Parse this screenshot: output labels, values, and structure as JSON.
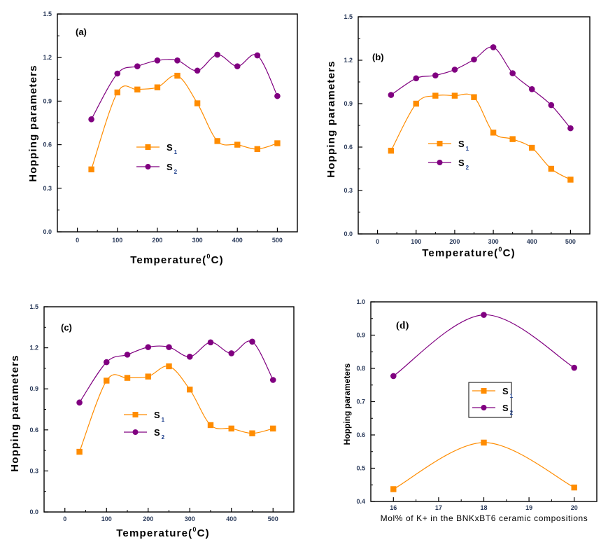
{
  "colors": {
    "s1": "#FF8C00",
    "s2": "#800080",
    "axis": "#000000"
  },
  "chart_data": [
    {
      "panel": "(a)",
      "type": "line",
      "title": "",
      "xlabel": "Temperature(°C)",
      "xlabel_main": "Temperature(",
      "xlabel_sup": "0",
      "xlabel_tail": "C)",
      "ylabel": "Hopping parameters",
      "xlim": [
        -50,
        550
      ],
      "ylim": [
        0.0,
        1.5
      ],
      "xticks": [
        0,
        100,
        200,
        300,
        400,
        500
      ],
      "xtick_labels": [
        "0",
        "100",
        "200",
        "300",
        "400",
        "500"
      ],
      "yticks": [
        0.0,
        0.3,
        0.6,
        0.9,
        1.2,
        1.5
      ],
      "ytick_labels": [
        "0.0",
        "0.3",
        "0.6",
        "0.9",
        "1.2",
        "1.5"
      ],
      "legend": "center-left",
      "grid": false,
      "x": [
        35,
        100,
        150,
        200,
        250,
        300,
        350,
        400,
        450,
        500
      ],
      "series": [
        {
          "name": "S1",
          "label": "S",
          "sub": "1",
          "marker": "square",
          "values": [
            0.43,
            0.96,
            0.98,
            0.995,
            1.075,
            0.885,
            0.625,
            0.6,
            0.57,
            0.61
          ]
        },
        {
          "name": "S2",
          "label": "S",
          "sub": "2",
          "marker": "circle",
          "values": [
            0.775,
            1.09,
            1.14,
            1.18,
            1.18,
            1.11,
            1.22,
            1.14,
            1.215,
            0.935
          ]
        }
      ]
    },
    {
      "panel": "(b)",
      "type": "line",
      "title": "",
      "xlabel": "Temperature(°C)",
      "xlabel_main": "Temperature(",
      "xlabel_sup": "0",
      "xlabel_tail": "C)",
      "ylabel": "Hopping parameters",
      "xlim": [
        -50,
        550
      ],
      "ylim": [
        0.0,
        1.5
      ],
      "xticks": [
        0,
        100,
        200,
        300,
        400,
        500
      ],
      "xtick_labels": [
        "0",
        "100",
        "200",
        "300",
        "400",
        "500"
      ],
      "yticks": [
        0.0,
        0.3,
        0.6,
        0.9,
        1.2,
        1.5
      ],
      "ytick_labels": [
        "0.0",
        "0.3",
        "0.6",
        "0.9",
        "1.2",
        "1.5"
      ],
      "legend": "center-left",
      "grid": false,
      "x": [
        35,
        100,
        150,
        200,
        250,
        300,
        350,
        400,
        450,
        500
      ],
      "series": [
        {
          "name": "S1",
          "label": "S",
          "sub": "1",
          "marker": "square",
          "values": [
            0.575,
            0.9,
            0.955,
            0.955,
            0.945,
            0.7,
            0.655,
            0.595,
            0.45,
            0.375
          ]
        },
        {
          "name": "S2",
          "label": "S",
          "sub": "2",
          "marker": "circle",
          "values": [
            0.96,
            1.075,
            1.095,
            1.135,
            1.205,
            1.29,
            1.11,
            1.0,
            0.89,
            0.73
          ]
        }
      ]
    },
    {
      "panel": "(c)",
      "type": "line",
      "title": "",
      "xlabel": "Temperature(°C)",
      "xlabel_main": "Temperature(",
      "xlabel_sup": "0",
      "xlabel_tail": "C)",
      "ylabel": "Hopping parameters",
      "xlim": [
        -50,
        550
      ],
      "ylim": [
        0.0,
        1.5
      ],
      "xticks": [
        0,
        100,
        200,
        300,
        400,
        500
      ],
      "xtick_labels": [
        "0",
        "100",
        "200",
        "300",
        "400",
        "500"
      ],
      "yticks": [
        0.0,
        0.3,
        0.6,
        0.9,
        1.2,
        1.5
      ],
      "ytick_labels": [
        "0.0",
        "0.3",
        "0.6",
        "0.9",
        "1.2",
        "1.5"
      ],
      "legend": "center-left",
      "grid": false,
      "x": [
        35,
        100,
        150,
        200,
        250,
        300,
        350,
        400,
        450,
        500
      ],
      "series": [
        {
          "name": "S1",
          "label": "S",
          "sub": "1",
          "marker": "square",
          "values": [
            0.44,
            0.96,
            0.98,
            0.99,
            1.065,
            0.895,
            0.635,
            0.61,
            0.575,
            0.61
          ]
        },
        {
          "name": "S2",
          "label": "S",
          "sub": "2",
          "marker": "circle",
          "values": [
            0.8,
            1.095,
            1.15,
            1.205,
            1.205,
            1.135,
            1.24,
            1.16,
            1.245,
            0.965
          ]
        }
      ]
    },
    {
      "panel": "(d)",
      "type": "line",
      "title": "",
      "xlabel": "Mol% of K+ in the BNKxBT6 ceramic compositions",
      "ylabel": "Hopping parameters",
      "xlim": [
        15.5,
        20.5
      ],
      "ylim": [
        0.4,
        1.0
      ],
      "xticks": [
        16,
        17,
        18,
        19,
        20
      ],
      "xtick_labels": [
        "16",
        "17",
        "18",
        "19",
        "20"
      ],
      "yticks": [
        0.4,
        0.5,
        0.6,
        0.7,
        0.8,
        0.9,
        1.0
      ],
      "ytick_labels": [
        "0.4",
        "0.5",
        "0.6",
        "0.7",
        "0.8",
        "0.9",
        "1.0"
      ],
      "legend": "center-right (boxed)",
      "grid": false,
      "x": [
        16,
        18,
        20
      ],
      "series": [
        {
          "name": "S1",
          "label": "S",
          "sub": "1",
          "marker": "square",
          "values": [
            0.437,
            0.577,
            0.442
          ]
        },
        {
          "name": "S2",
          "label": "S",
          "sub": "2",
          "marker": "circle",
          "values": [
            0.777,
            0.961,
            0.802
          ]
        }
      ]
    }
  ]
}
